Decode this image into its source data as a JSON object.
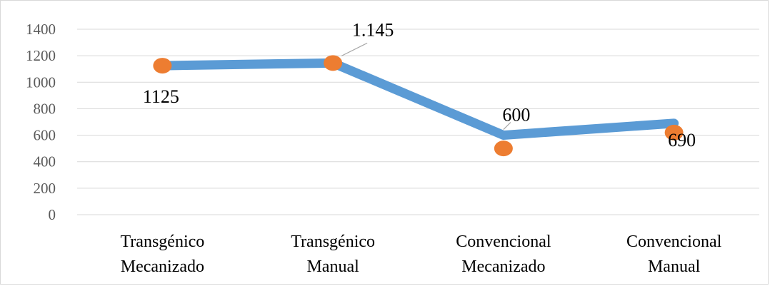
{
  "chart_data": {
    "type": "line",
    "title": "",
    "xlabel": "",
    "ylabel": "",
    "ylim": [
      0,
      1400
    ],
    "yticks": [
      0,
      200,
      400,
      600,
      800,
      1000,
      1200,
      1400
    ],
    "ytick_labels": [
      "0",
      "200",
      "400",
      "600",
      "800",
      "1000",
      "1200",
      "1400"
    ],
    "categories": [
      [
        "Transgénico",
        "Mecanizado"
      ],
      [
        "Transgénico",
        "Manual"
      ],
      [
        "Convencional",
        "Mecanizado"
      ],
      [
        "Convencional",
        "Manual"
      ]
    ],
    "grid": true,
    "legend": "none",
    "series": [
      {
        "line_color": "#5B9BD5",
        "marker_color": "#ED7D31",
        "line_values": [
          1125,
          1145,
          600,
          690
        ],
        "marker_values": [
          1125,
          1145,
          500,
          620
        ],
        "data_labels": [
          "1125",
          "1.145",
          "600",
          "690"
        ]
      }
    ]
  }
}
